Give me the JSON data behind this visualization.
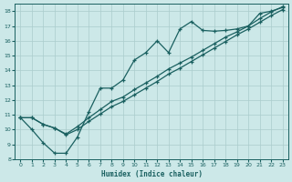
{
  "title": "",
  "xlabel": "Humidex (Indice chaleur)",
  "ylabel": "",
  "bg_color": "#cce8e8",
  "grid_color": "#aacccc",
  "line_color": "#1a6060",
  "xlim": [
    -0.5,
    23.5
  ],
  "ylim": [
    8,
    18.5
  ],
  "xticks": [
    0,
    1,
    2,
    3,
    4,
    5,
    6,
    7,
    8,
    9,
    10,
    11,
    12,
    13,
    14,
    15,
    16,
    17,
    18,
    19,
    20,
    21,
    22,
    23
  ],
  "yticks": [
    8,
    9,
    10,
    11,
    12,
    13,
    14,
    15,
    16,
    17,
    18
  ],
  "line1_x": [
    0,
    1,
    2,
    3,
    4,
    5,
    6,
    7,
    8,
    9,
    10,
    11,
    12,
    13,
    14,
    15,
    16,
    17,
    18,
    19,
    20,
    21,
    22,
    23
  ],
  "line1_y": [
    10.8,
    10.0,
    9.1,
    8.4,
    8.4,
    9.5,
    11.2,
    12.8,
    12.8,
    13.35,
    14.7,
    15.2,
    16.0,
    15.2,
    16.8,
    17.3,
    16.7,
    16.65,
    16.7,
    16.8,
    17.0,
    17.85,
    18.0,
    18.25
  ],
  "line2_x": [
    0,
    1,
    2,
    3,
    4,
    5,
    6,
    7,
    8,
    9,
    10,
    11,
    12,
    13,
    14,
    15,
    16,
    17,
    18,
    19,
    20,
    21,
    22,
    23
  ],
  "line2_y": [
    10.8,
    10.8,
    10.35,
    10.1,
    9.7,
    10.2,
    10.8,
    11.35,
    11.9,
    12.2,
    12.7,
    13.15,
    13.6,
    14.1,
    14.5,
    14.9,
    15.35,
    15.8,
    16.25,
    16.6,
    17.0,
    17.5,
    17.95,
    18.3
  ],
  "line3_x": [
    0,
    1,
    2,
    3,
    4,
    5,
    6,
    7,
    8,
    9,
    10,
    11,
    12,
    13,
    14,
    15,
    16,
    17,
    18,
    19,
    20,
    21,
    22,
    23
  ],
  "line3_y": [
    10.8,
    10.8,
    10.35,
    10.1,
    9.65,
    10.0,
    10.55,
    11.05,
    11.55,
    11.9,
    12.35,
    12.8,
    13.25,
    13.75,
    14.15,
    14.6,
    15.05,
    15.5,
    15.95,
    16.4,
    16.8,
    17.25,
    17.7,
    18.1
  ]
}
